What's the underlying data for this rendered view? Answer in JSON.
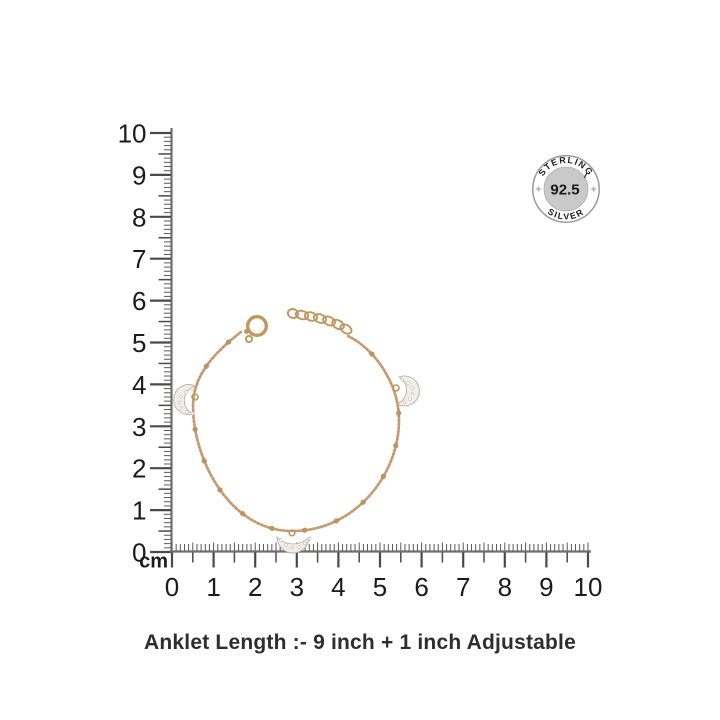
{
  "page": {
    "background_color": "#ffffff"
  },
  "rulers": {
    "unit_label": "cm",
    "tick_color": "#4a4a4a",
    "minor_tick_color": "#5a5a5a",
    "number_color": "#1b1b1b",
    "vertical": {
      "labels": [
        "10",
        "9",
        "8",
        "7",
        "6",
        "5",
        "4",
        "3",
        "2",
        "1",
        "0"
      ]
    },
    "horizontal": {
      "labels": [
        "0",
        "1",
        "2",
        "3",
        "4",
        "5",
        "6",
        "7",
        "8",
        "9",
        "10"
      ]
    }
  },
  "product_photo": {
    "description": "Rose-gold satellite chain anklet with three crystal crescent-moon charms, spring-ring clasp and extension chain",
    "chain_color": "#cba078",
    "chain_texture_color": "#a97c52",
    "bead_color": "#c2935f",
    "clasp_color": "#c0975f",
    "charm_fill_color": "#f1eeea",
    "charm_stroke_color": "#b7b0a8",
    "stone_color": "#ffffff",
    "charms": [
      {
        "name": "crescent-moon-charm-left"
      },
      {
        "name": "crescent-moon-charm-right"
      },
      {
        "name": "crescent-moon-charm-bottom"
      }
    ]
  },
  "badge": {
    "top_text": "STERLING",
    "center_text": "92.5",
    "bottom_text": "SILVER",
    "ring_color": "#9a9a9a",
    "inner_circle_color": "#c9c9c9",
    "star_color": "#b3b3b3",
    "text_color": "#1a1a1a"
  },
  "caption": {
    "text": "Anklet Length :- 9 inch + 1 inch Adjustable"
  }
}
